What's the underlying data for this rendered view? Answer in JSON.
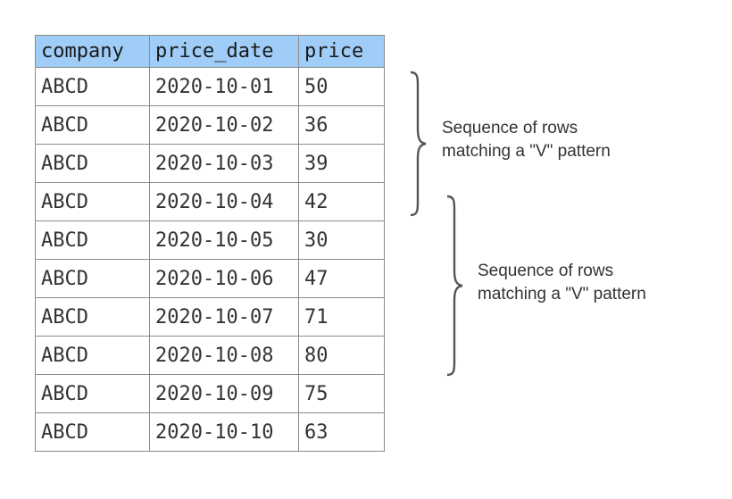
{
  "table": {
    "columns": [
      "company",
      "price_date",
      "price"
    ],
    "rows": [
      [
        "ABCD",
        "2020-10-01",
        "50"
      ],
      [
        "ABCD",
        "2020-10-02",
        "36"
      ],
      [
        "ABCD",
        "2020-10-03",
        "39"
      ],
      [
        "ABCD",
        "2020-10-04",
        "42"
      ],
      [
        "ABCD",
        "2020-10-05",
        "30"
      ],
      [
        "ABCD",
        "2020-10-06",
        "47"
      ],
      [
        "ABCD",
        "2020-10-07",
        "71"
      ],
      [
        "ABCD",
        "2020-10-08",
        "80"
      ],
      [
        "ABCD",
        "2020-10-09",
        "75"
      ],
      [
        "ABCD",
        "2020-10-10",
        "63"
      ]
    ],
    "header_color": "#9fcdf8"
  },
  "annotations": [
    {
      "line1": "Sequence of rows",
      "line2": "matching a \"V\" pattern",
      "rows_from": 1,
      "rows_to": 4
    },
    {
      "line1": "Sequence of rows",
      "line2": "matching a \"V\" pattern",
      "rows_from": 4,
      "rows_to": 8
    }
  ]
}
